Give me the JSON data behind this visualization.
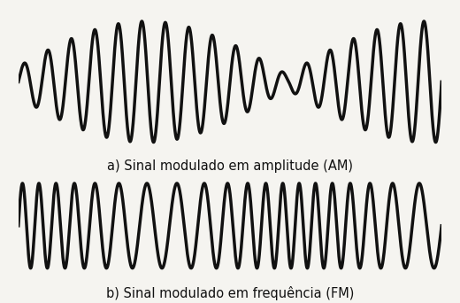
{
  "label_am": "a) Sinal modulado em amplitude (AM)",
  "label_fm": "b) Sinal modulado em frequência (FM)",
  "background_color": "#f5f4f0",
  "line_color": "#111111",
  "line_width": 2.5,
  "label_fontsize": 10.5,
  "fig_width": 5.2,
  "fig_height": 3.42,
  "dpi": 100,
  "n_points": 5000
}
